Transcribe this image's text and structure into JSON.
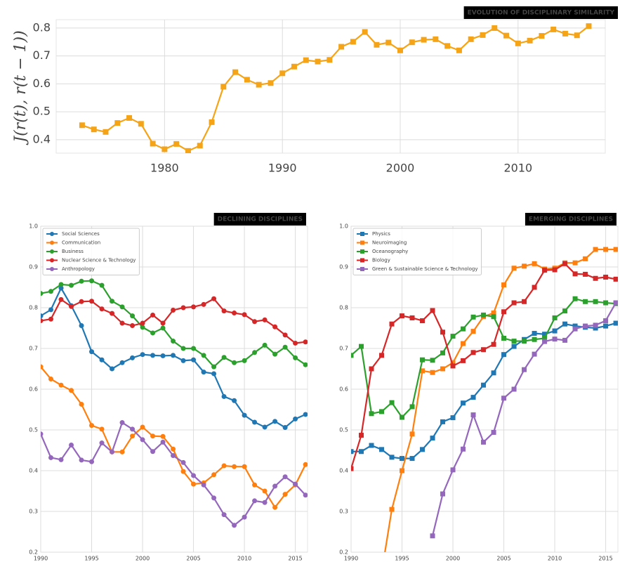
{
  "chart_data": [
    {
      "type": "line",
      "title": "EVOLUTION OF DISCIPLINARY SIMILARITY",
      "y_label": "J(r(t), r(t − 1))",
      "marker": "square",
      "grid": true,
      "x": [
        1973,
        1974,
        1975,
        1976,
        1977,
        1978,
        1979,
        1980,
        1981,
        1982,
        1983,
        1984,
        1985,
        1986,
        1987,
        1988,
        1989,
        1990,
        1991,
        1992,
        1993,
        1994,
        1995,
        1996,
        1997,
        1998,
        1999,
        2000,
        2001,
        2002,
        2003,
        2004,
        2005,
        2006,
        2007,
        2008,
        2009,
        2010,
        2011,
        2012,
        2013,
        2014,
        2015,
        2016
      ],
      "series": [
        {
          "color": "#f5a418",
          "values": [
            0.452,
            0.437,
            0.428,
            0.46,
            0.478,
            0.457,
            0.386,
            0.366,
            0.385,
            0.36,
            0.379,
            0.463,
            0.59,
            0.642,
            0.615,
            0.597,
            0.603,
            0.638,
            0.662,
            0.685,
            0.68,
            0.686,
            0.733,
            0.751,
            0.786,
            0.74,
            0.748,
            0.72,
            0.749,
            0.758,
            0.76,
            0.736,
            0.72,
            0.76,
            0.775,
            0.8,
            0.773,
            0.745,
            0.755,
            0.772,
            0.795,
            0.78,
            0.774,
            0.807
          ]
        }
      ],
      "xlim": [
        1970.8,
        2017.4
      ],
      "xticks": [
        1980,
        1990,
        2000,
        2010
      ],
      "ylim": [
        0.352,
        0.83
      ],
      "yticks": [
        0.4,
        0.5,
        0.6,
        0.7,
        0.8
      ]
    },
    {
      "type": "line",
      "title": "DECLINING DISCIPLINES",
      "marker": "circle",
      "grid": true,
      "legend": "upper left",
      "x": [
        1990,
        1991,
        1992,
        1993,
        1994,
        1995,
        1996,
        1997,
        1998,
        1999,
        2000,
        2001,
        2002,
        2003,
        2004,
        2005,
        2006,
        2007,
        2008,
        2009,
        2010,
        2011,
        2012,
        2013,
        2014,
        2015,
        2016
      ],
      "series": [
        {
          "name": "Social Sciences",
          "color": "#1f77b4",
          "values": [
            0.78,
            0.795,
            0.848,
            0.805,
            0.756,
            0.692,
            0.672,
            0.65,
            0.665,
            0.677,
            0.685,
            0.683,
            0.682,
            0.683,
            0.67,
            0.672,
            0.642,
            0.638,
            0.582,
            0.572,
            0.536,
            0.519,
            0.507,
            0.521,
            0.506,
            0.527,
            0.538
          ]
        },
        {
          "name": "Communication",
          "color": "#ff7f0e",
          "values": [
            0.655,
            0.625,
            0.61,
            0.597,
            0.563,
            0.511,
            0.502,
            0.446,
            0.446,
            0.485,
            0.507,
            0.485,
            0.484,
            0.453,
            0.398,
            0.367,
            0.37,
            0.39,
            0.412,
            0.41,
            0.41,
            0.365,
            0.35,
            0.31,
            0.342,
            0.365,
            0.415
          ]
        },
        {
          "name": "Business",
          "color": "#2ca02c",
          "values": [
            0.835,
            0.84,
            0.857,
            0.855,
            0.865,
            0.866,
            0.855,
            0.816,
            0.802,
            0.78,
            0.752,
            0.738,
            0.75,
            0.718,
            0.7,
            0.7,
            0.683,
            0.655,
            0.678,
            0.665,
            0.67,
            0.69,
            0.708,
            0.686,
            0.703,
            0.677,
            0.66
          ]
        },
        {
          "name": "Nuclear Science & Technology",
          "color": "#d62728",
          "values": [
            0.768,
            0.772,
            0.82,
            0.803,
            0.815,
            0.816,
            0.797,
            0.786,
            0.762,
            0.756,
            0.762,
            0.782,
            0.762,
            0.794,
            0.8,
            0.802,
            0.808,
            0.822,
            0.792,
            0.787,
            0.783,
            0.766,
            0.77,
            0.753,
            0.733,
            0.713,
            0.716
          ]
        },
        {
          "name": "Anthropology",
          "color": "#9467bd",
          "values": [
            0.49,
            0.432,
            0.427,
            0.463,
            0.426,
            0.422,
            0.468,
            0.446,
            0.518,
            0.502,
            0.476,
            0.447,
            0.47,
            0.437,
            0.42,
            0.388,
            0.365,
            0.333,
            0.292,
            0.266,
            0.286,
            0.326,
            0.322,
            0.362,
            0.385,
            0.367,
            0.34
          ]
        }
      ],
      "xlim": [
        1990,
        2016.2
      ],
      "xticks": [
        1990,
        1995,
        2000,
        2005,
        2010,
        2015
      ],
      "ylim": [
        0.2,
        1
      ],
      "yticks": [
        0.2,
        0.3,
        0.4,
        0.5,
        0.6,
        0.7,
        0.8,
        0.9,
        {
          "value": 1,
          "label": "1.0"
        }
      ]
    },
    {
      "type": "line",
      "title": "EMERGING DISCIPLINES",
      "marker": "square",
      "grid": true,
      "legend": "upper left",
      "x": [
        1990,
        1991,
        1992,
        1993,
        1994,
        1995,
        1996,
        1997,
        1998,
        1999,
        2000,
        2001,
        2002,
        2003,
        2004,
        2005,
        2006,
        2007,
        2008,
        2009,
        2010,
        2011,
        2012,
        2013,
        2014,
        2015,
        2016
      ],
      "series": [
        {
          "name": "Physics",
          "color": "#1f77b4",
          "values": [
            0.447,
            0.447,
            0.462,
            0.452,
            0.433,
            0.43,
            0.43,
            0.452,
            0.48,
            0.52,
            0.53,
            0.566,
            0.58,
            0.61,
            0.64,
            0.685,
            0.705,
            0.722,
            0.737,
            0.735,
            0.743,
            0.76,
            0.755,
            0.752,
            0.75,
            0.755,
            0.762
          ]
        },
        {
          "name": "Neuroimaging",
          "color": "#ff7f0e",
          "values": [
            null,
            null,
            null,
            0.15,
            0.305,
            0.4,
            0.49,
            0.645,
            0.641,
            0.65,
            0.665,
            0.712,
            0.742,
            0.778,
            0.787,
            0.856,
            0.897,
            0.902,
            0.908,
            0.895,
            0.897,
            0.91,
            0.91,
            0.92,
            0.943,
            0.943,
            0.943
          ]
        },
        {
          "name": "Oceanography",
          "color": "#2ca02c",
          "values": [
            0.683,
            0.705,
            0.54,
            0.545,
            0.567,
            0.531,
            0.557,
            0.672,
            0.671,
            0.689,
            0.73,
            0.748,
            0.777,
            0.782,
            0.778,
            0.725,
            0.718,
            0.718,
            0.722,
            0.725,
            0.775,
            0.792,
            0.822,
            0.815,
            0.815,
            0.812,
            0.81
          ]
        },
        {
          "name": "Biology",
          "color": "#d62728",
          "values": [
            0.405,
            0.487,
            0.65,
            0.683,
            0.76,
            0.78,
            0.775,
            0.768,
            0.793,
            0.74,
            0.657,
            0.67,
            0.69,
            0.697,
            0.71,
            0.79,
            0.812,
            0.815,
            0.85,
            0.892,
            0.893,
            0.908,
            0.883,
            0.882,
            0.872,
            0.875,
            0.87
          ]
        },
        {
          "name": "Green & Sustainable Science & Technology",
          "color": "#9467bd",
          "values": [
            null,
            null,
            null,
            null,
            null,
            null,
            null,
            null,
            0.24,
            0.343,
            0.402,
            0.453,
            0.537,
            0.47,
            0.494,
            0.578,
            0.6,
            0.648,
            0.686,
            0.717,
            0.723,
            0.72,
            0.748,
            0.755,
            0.757,
            0.768,
            0.812
          ]
        }
      ],
      "xlim": [
        1990,
        2016.2
      ],
      "xticks": [
        1990,
        1995,
        2000,
        2005,
        2010,
        2015
      ],
      "ylim": [
        0.2,
        1
      ],
      "yticks": [
        0.2,
        0.3,
        0.4,
        0.5,
        0.6,
        0.7,
        0.8,
        0.9,
        {
          "value": 1,
          "label": "1.0"
        }
      ]
    }
  ]
}
